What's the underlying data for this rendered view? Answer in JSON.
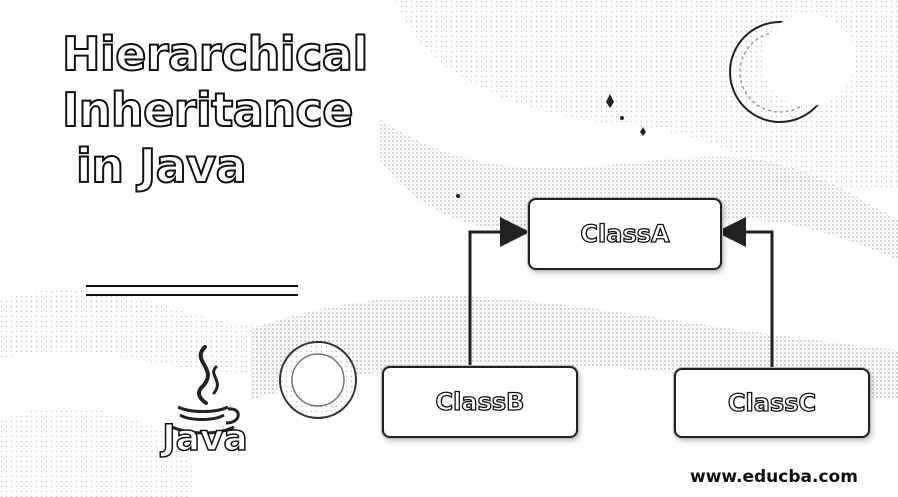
{
  "title": {
    "line1": "Hierarchical",
    "line2": "Inheritance",
    "line3": "in Java"
  },
  "diagram": {
    "parent": "ClassA",
    "children": [
      "ClassB",
      "ClassC"
    ]
  },
  "logo": {
    "icon": "java-coffee-cup-icon",
    "text": "Java"
  },
  "watermark": "www.educba.com",
  "colors": {
    "background": "#ffffff",
    "outline": "#111111"
  }
}
